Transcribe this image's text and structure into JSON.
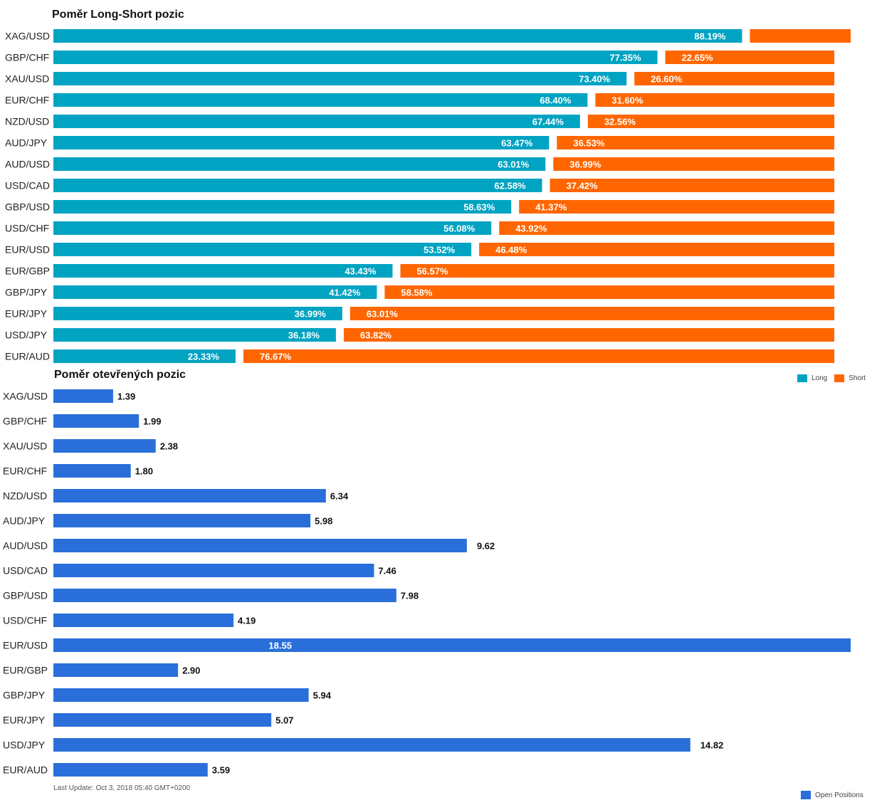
{
  "chart_data": [
    {
      "type": "bar",
      "orientation": "horizontal",
      "stacked": "percent",
      "title": "Poměr Long-Short pozic",
      "categories": [
        "XAG/USD",
        "GBP/CHF",
        "XAU/USD",
        "EUR/CHF",
        "NZD/USD",
        "AUD/JPY",
        "AUD/USD",
        "USD/CAD",
        "GBP/USD",
        "USD/CHF",
        "EUR/USD",
        "EUR/GBP",
        "GBP/JPY",
        "EUR/JPY",
        "USD/JPY",
        "EUR/AUD"
      ],
      "series": [
        {
          "name": "Long",
          "color": "#00a3c2",
          "values": [
            88.19,
            77.35,
            73.4,
            68.4,
            67.44,
            63.47,
            63.01,
            62.58,
            58.63,
            56.08,
            53.52,
            43.43,
            41.42,
            36.99,
            36.18,
            23.33
          ],
          "labels": [
            "88.19%",
            "77.35%",
            "73.40%",
            "68.40%",
            "67.44%",
            "63.47%",
            "63.01%",
            "62.58%",
            "58.63%",
            "56.08%",
            "53.52%",
            "43.43%",
            "41.42%",
            "36.99%",
            "36.18%",
            "23.33%"
          ]
        },
        {
          "name": "Short",
          "color": "#ff6600",
          "values": [
            11.81,
            22.65,
            26.6,
            31.6,
            32.56,
            36.53,
            36.99,
            37.42,
            41.37,
            43.92,
            46.48,
            56.57,
            58.58,
            63.01,
            63.82,
            76.67
          ],
          "labels": [
            "",
            "22.65%",
            "26.60%",
            "31.60%",
            "32.56%",
            "36.53%",
            "36.99%",
            "37.42%",
            "41.37%",
            "43.92%",
            "46.48%",
            "56.57%",
            "58.58%",
            "63.01%",
            "63.82%",
            "76.67%"
          ]
        }
      ],
      "xlim": [
        0,
        100
      ],
      "legend": "bottom-right"
    },
    {
      "type": "bar",
      "orientation": "horizontal",
      "title": "Poměr otevřených pozic",
      "categories": [
        "XAG/USD",
        "GBP/CHF",
        "XAU/USD",
        "EUR/CHF",
        "NZD/USD",
        "AUD/JPY",
        "AUD/USD",
        "USD/CAD",
        "GBP/USD",
        "USD/CHF",
        "EUR/USD",
        "EUR/GBP",
        "GBP/JPY",
        "EUR/JPY",
        "USD/JPY",
        "EUR/AUD"
      ],
      "series": [
        {
          "name": "Open Positions",
          "color": "#2a6fd9",
          "values": [
            1.39,
            1.99,
            2.38,
            1.8,
            6.34,
            5.98,
            9.62,
            7.46,
            7.98,
            4.19,
            18.55,
            2.9,
            5.94,
            5.07,
            14.82,
            3.59
          ],
          "labels": [
            "1.39",
            "1.99",
            "2.38",
            "1.80",
            "6.34",
            "5.98",
            "9.62",
            "7.46",
            "7.98",
            "4.19",
            "18.55",
            "2.90",
            "5.94",
            "5.07",
            "14.82",
            "3.59"
          ]
        }
      ],
      "xlim": [
        0,
        18.55
      ],
      "legend": "bottom-right"
    }
  ],
  "legend_ls": {
    "long": "Long",
    "short": "Short",
    "long_color": "#00a3c2",
    "short_color": "#ff6600"
  },
  "legend_op": {
    "label": "Open Positions",
    "color": "#2a6fd9"
  },
  "footer": {
    "last_update": "Last Update: Oct 3, 2018 05:40 GMT+0200"
  }
}
